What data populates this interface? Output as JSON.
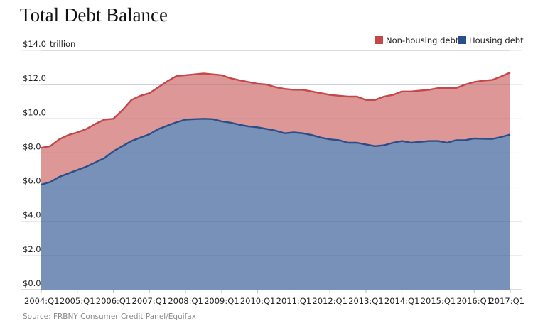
{
  "chart_data": {
    "type": "area",
    "title": "Total Debt Balance",
    "source": "Source: FRBNY Consumer Credit Panel/Equifax",
    "y_unit_label": "trillion",
    "stacked": true,
    "legend_position": "top-right",
    "grid": true,
    "ylim": [
      0,
      14
    ],
    "y_ticks": [
      "$0.0",
      "$2.0",
      "$4.0",
      "$6.0",
      "$8.0",
      "$10.0",
      "$12.0",
      "$14.0"
    ],
    "x_ticks": [
      "2004:Q1",
      "2005:Q1",
      "2006:Q1",
      "2007:Q1",
      "2008:Q1",
      "2009:Q1",
      "2010:Q1",
      "2011:Q1",
      "2012:Q1",
      "2013:Q1",
      "2014:Q1",
      "2015:Q1",
      "2016:Q1",
      "2017:Q1"
    ],
    "x": [
      "2004:Q1",
      "2004:Q2",
      "2004:Q3",
      "2004:Q4",
      "2005:Q1",
      "2005:Q2",
      "2005:Q3",
      "2005:Q4",
      "2006:Q1",
      "2006:Q2",
      "2006:Q3",
      "2006:Q4",
      "2007:Q1",
      "2007:Q2",
      "2007:Q3",
      "2007:Q4",
      "2008:Q1",
      "2008:Q2",
      "2008:Q3",
      "2008:Q4",
      "2009:Q1",
      "2009:Q2",
      "2009:Q3",
      "2009:Q4",
      "2010:Q1",
      "2010:Q2",
      "2010:Q3",
      "2010:Q4",
      "2011:Q1",
      "2011:Q2",
      "2011:Q3",
      "2011:Q4",
      "2012:Q1",
      "2012:Q2",
      "2012:Q3",
      "2012:Q4",
      "2013:Q1",
      "2013:Q2",
      "2013:Q3",
      "2013:Q4",
      "2014:Q1",
      "2014:Q2",
      "2014:Q3",
      "2014:Q4",
      "2015:Q1",
      "2015:Q2",
      "2015:Q3",
      "2015:Q4",
      "2016:Q1",
      "2016:Q2",
      "2016:Q3",
      "2016:Q4",
      "2017:Q1"
    ],
    "series": [
      {
        "name": "Housing debt",
        "color": "#2c4e88",
        "fill": "#7891b8",
        "values": [
          6.15,
          6.3,
          6.6,
          6.8,
          7.0,
          7.2,
          7.45,
          7.7,
          8.1,
          8.4,
          8.7,
          8.9,
          9.1,
          9.4,
          9.6,
          9.8,
          9.95,
          9.98,
          10.0,
          9.98,
          9.85,
          9.77,
          9.65,
          9.55,
          9.5,
          9.4,
          9.3,
          9.15,
          9.2,
          9.15,
          9.05,
          8.9,
          8.8,
          8.75,
          8.6,
          8.6,
          8.5,
          8.4,
          8.45,
          8.6,
          8.7,
          8.6,
          8.65,
          8.7,
          8.7,
          8.6,
          8.75,
          8.75,
          8.85,
          8.83,
          8.82,
          8.93,
          9.08
        ]
      },
      {
        "name": "Non-housing debt",
        "color": "#c5474a",
        "fill": "#dd9797",
        "values": [
          2.15,
          2.1,
          2.2,
          2.25,
          2.2,
          2.2,
          2.25,
          2.25,
          1.9,
          2.1,
          2.4,
          2.45,
          2.4,
          2.45,
          2.6,
          2.7,
          2.6,
          2.62,
          2.65,
          2.62,
          2.7,
          2.6,
          2.6,
          2.6,
          2.55,
          2.6,
          2.55,
          2.6,
          2.5,
          2.55,
          2.55,
          2.6,
          2.6,
          2.6,
          2.7,
          2.7,
          2.6,
          2.7,
          2.85,
          2.8,
          2.9,
          3.0,
          3.0,
          3.0,
          3.1,
          3.2,
          3.05,
          3.25,
          3.3,
          3.4,
          3.45,
          3.55,
          3.63
        ]
      }
    ]
  }
}
